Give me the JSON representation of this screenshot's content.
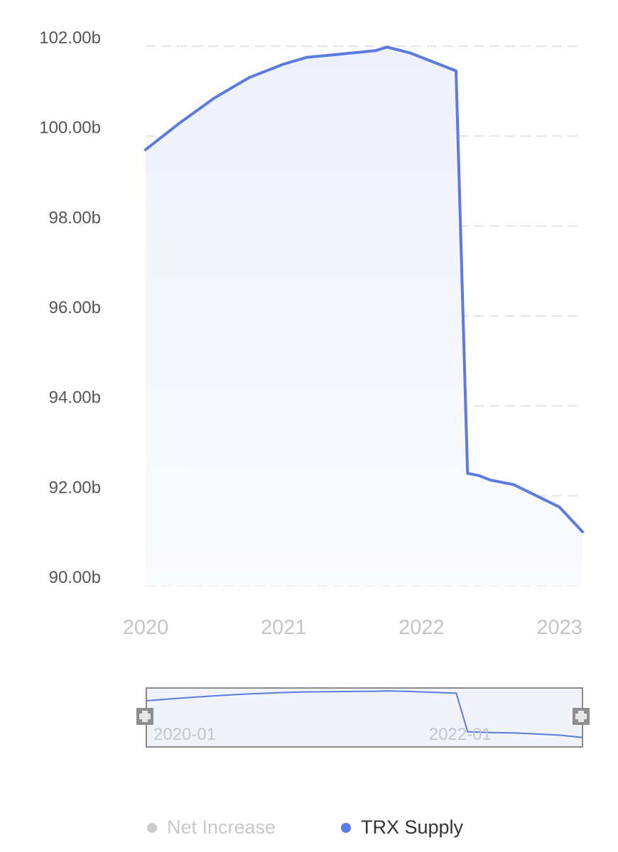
{
  "chart_data": {
    "type": "area",
    "title": "",
    "xlabel": "",
    "ylabel": "",
    "x_ticks": [
      "2020",
      "2021",
      "2022",
      "2023"
    ],
    "y_ticks": [
      "90.00b",
      "92.00b",
      "94.00b",
      "96.00b",
      "98.00b",
      "100.00b",
      "102.00b"
    ],
    "ylim": [
      90,
      102
    ],
    "xlim": [
      "2020-01",
      "2023-03"
    ],
    "grid": true,
    "legend_position": "bottom",
    "series": [
      {
        "name": "Net Increase",
        "color": "#cccccc",
        "visible": false,
        "x": [],
        "values": []
      },
      {
        "name": "TRX Supply",
        "color": "#5b7be0",
        "fill": "#eef1fb",
        "unit": "b",
        "x": [
          "2020-01",
          "2020-04",
          "2020-07",
          "2020-10",
          "2021-01",
          "2021-03",
          "2021-05",
          "2021-07",
          "2021-09",
          "2021-10",
          "2021-12",
          "2022-03",
          "2022-04",
          "2022-05",
          "2022-06",
          "2022-07",
          "2022-09",
          "2022-11",
          "2023-01",
          "2023-03"
        ],
        "values": [
          99.7,
          100.3,
          100.85,
          101.3,
          101.6,
          101.75,
          101.8,
          101.85,
          101.9,
          101.98,
          101.85,
          101.55,
          101.45,
          92.5,
          92.45,
          92.35,
          92.25,
          92.0,
          91.75,
          91.2
        ]
      }
    ],
    "zoom_slider": {
      "labels": [
        "2020-01",
        "2022-01"
      ],
      "handle_icon": "drag-handle-icon"
    }
  }
}
